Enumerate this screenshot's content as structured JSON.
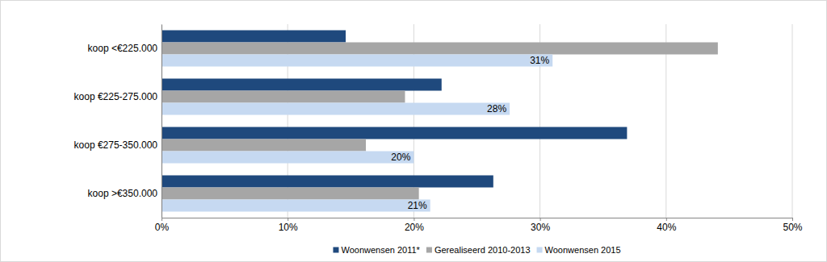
{
  "chart_data": {
    "type": "bar",
    "orientation": "horizontal",
    "categories": [
      "koop <€225.000",
      "koop €225-275.000",
      "koop €275-350.000",
      "koop >€350.000"
    ],
    "series": [
      {
        "name": "Woonwensen 2011*",
        "color": "#1f497d",
        "values": [
          14.6,
          22.2,
          36.9,
          26.3
        ]
      },
      {
        "name": "Gerealiseerd 2010-2013",
        "color": "#a6a6a6",
        "values": [
          44.1,
          19.3,
          16.2,
          20.4
        ]
      },
      {
        "name": "Woonwensen 2015",
        "color": "#c6d9f1",
        "values": [
          31.0,
          27.6,
          20.0,
          21.3
        ],
        "data_labels": true,
        "value_labels": [
          "31%",
          "28%",
          "20%",
          "21%"
        ]
      }
    ],
    "xlim": [
      0,
      50
    ],
    "xticks": [
      {
        "value": 0,
        "label": "0%"
      },
      {
        "value": 10,
        "label": "10%"
      },
      {
        "value": 20,
        "label": "20%"
      },
      {
        "value": 30,
        "label": "30%"
      },
      {
        "value": 40,
        "label": "40%"
      },
      {
        "value": 50,
        "label": "50%"
      }
    ],
    "grid": true,
    "legend": "bottom"
  }
}
